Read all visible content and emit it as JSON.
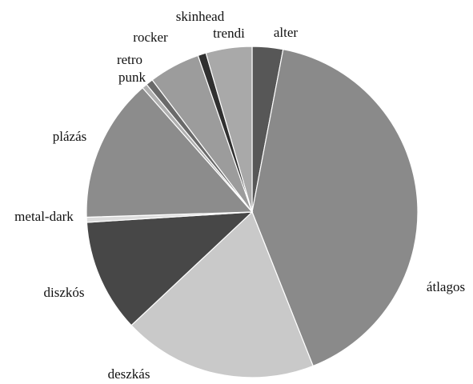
{
  "chart_data": {
    "type": "pie",
    "categories": [
      "alter",
      "átlagos",
      "deszkás",
      "diszkós",
      "metal-dark",
      "plázás",
      "punk",
      "retro",
      "rocker",
      "skinhead",
      "trendi"
    ],
    "values": [
      3,
      41,
      19,
      11,
      0.5,
      14,
      0.5,
      0.7,
      5,
      0.8,
      4.5
    ],
    "colors": [
      "#575757",
      "#8a8a8a",
      "#c9c9c9",
      "#474747",
      "#dcdcdc",
      "#8c8c8c",
      "#b0b0b0",
      "#6a6a6a",
      "#9c9c9c",
      "#303030",
      "#a9a9a9"
    ]
  }
}
